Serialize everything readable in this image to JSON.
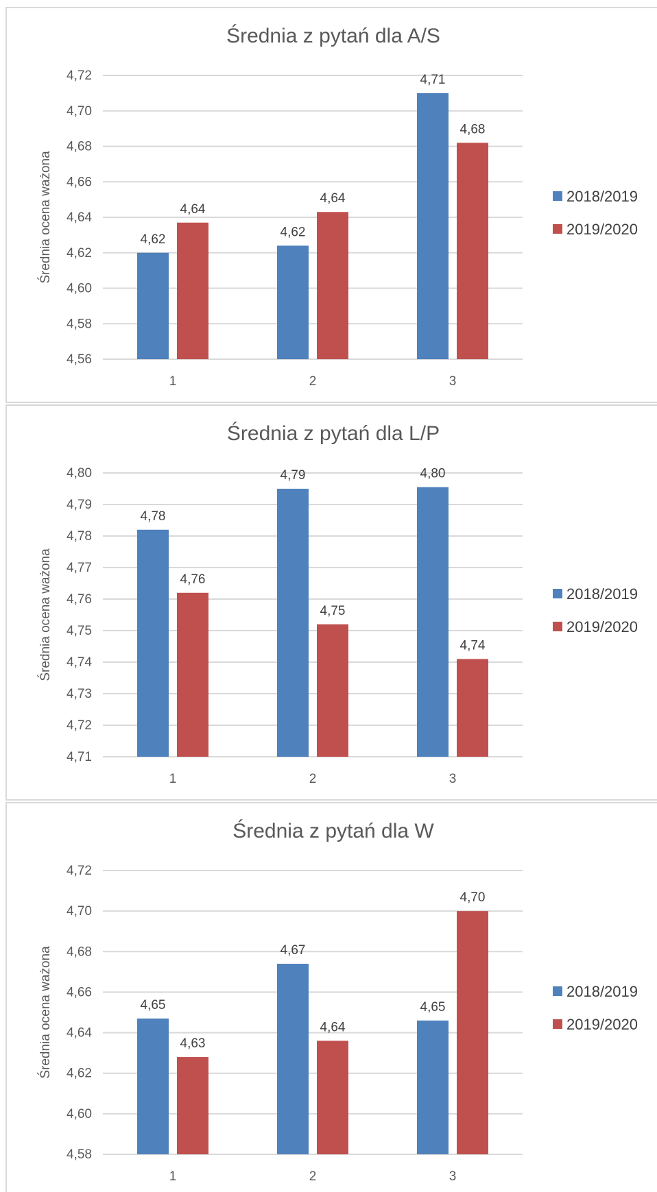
{
  "colors": {
    "series_2018": "#4f81bd",
    "series_2019": "#c0504d",
    "grid": "#d9d9d9",
    "text": "#595959"
  },
  "chart_data": [
    {
      "type": "bar",
      "title": "Średnia z pytań dla A/S",
      "ylabel": "Średnia ocena ważona",
      "xlabel": "",
      "categories": [
        "1",
        "2",
        "3"
      ],
      "ylim": [
        4.56,
        4.72
      ],
      "ystep": 0.02,
      "decimals": 2,
      "yticks": [
        "4,56",
        "4,58",
        "4,60",
        "4,62",
        "4,64",
        "4,66",
        "4,68",
        "4,70",
        "4,72"
      ],
      "grid": true,
      "legend": "right",
      "series": [
        {
          "name": "2018/2019",
          "values": [
            4.62,
            4.624,
            4.71
          ],
          "labels": [
            "4,62",
            "4,62",
            "4,71"
          ]
        },
        {
          "name": "2019/2020",
          "values": [
            4.637,
            4.643,
            4.682
          ],
          "labels": [
            "4,64",
            "4,64",
            "4,68"
          ]
        }
      ]
    },
    {
      "type": "bar",
      "title": "Średnia z pytań dla L/P",
      "ylabel": "Średnia ocena ważona",
      "xlabel": "",
      "categories": [
        "1",
        "2",
        "3"
      ],
      "ylim": [
        4.71,
        4.8
      ],
      "ystep": 0.01,
      "decimals": 2,
      "yticks": [
        "4,71",
        "4,72",
        "4,73",
        "4,74",
        "4,75",
        "4,76",
        "4,77",
        "4,78",
        "4,79",
        "4,80"
      ],
      "grid": true,
      "legend": "right",
      "series": [
        {
          "name": "2018/2019",
          "values": [
            4.782,
            4.795,
            4.7955
          ],
          "labels": [
            "4,78",
            "4,79",
            "4,80"
          ]
        },
        {
          "name": "2019/2020",
          "values": [
            4.762,
            4.752,
            4.741
          ],
          "labels": [
            "4,76",
            "4,75",
            "4,74"
          ]
        }
      ]
    },
    {
      "type": "bar",
      "title": "Średnia z pytań dla W",
      "ylabel": "Średnia ocena ważona",
      "xlabel": "",
      "categories": [
        "1",
        "2",
        "3"
      ],
      "ylim": [
        4.58,
        4.72
      ],
      "ystep": 0.02,
      "decimals": 2,
      "yticks": [
        "4,58",
        "4,60",
        "4,62",
        "4,64",
        "4,66",
        "4,68",
        "4,70",
        "4,72"
      ],
      "grid": true,
      "legend": "right",
      "series": [
        {
          "name": "2018/2019",
          "values": [
            4.647,
            4.674,
            4.646
          ],
          "labels": [
            "4,65",
            "4,67",
            "4,65"
          ]
        },
        {
          "name": "2019/2020",
          "values": [
            4.628,
            4.636,
            4.7
          ],
          "labels": [
            "4,63",
            "4,64",
            "4,70"
          ]
        }
      ]
    }
  ]
}
